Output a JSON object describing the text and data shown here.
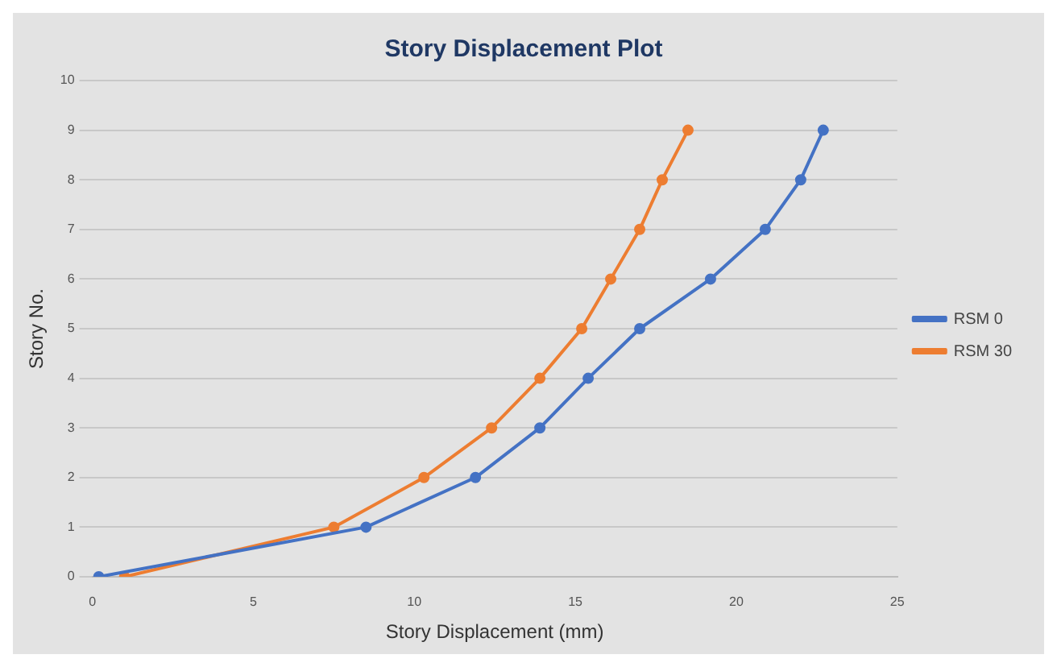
{
  "chart_data": {
    "type": "line",
    "title": "Story Displacement Plot",
    "xlabel": "Story Displacement (mm)",
    "ylabel": "Story No.",
    "series": [
      {
        "name": "RSM 0",
        "color": "#4472c4",
        "x": [
          0.2,
          8.5,
          11.9,
          13.9,
          15.4,
          17.0,
          19.2,
          20.9,
          22.0,
          22.7
        ],
        "values": [
          0,
          1,
          2,
          3,
          4,
          5,
          6,
          7,
          8,
          9
        ]
      },
      {
        "name": "RSM 30",
        "color": "#ed7d31",
        "x": [
          1.0,
          7.5,
          10.3,
          12.4,
          13.9,
          15.2,
          16.1,
          17.0,
          17.7,
          18.5
        ],
        "values": [
          0,
          1,
          2,
          3,
          4,
          5,
          6,
          7,
          8,
          9
        ]
      }
    ],
    "xlim": [
      0,
      25
    ],
    "xticks": [
      0,
      5,
      10,
      15,
      20,
      25
    ],
    "ylim": [
      0,
      10
    ],
    "yticks": [
      0,
      1,
      2,
      3,
      4,
      5,
      6,
      7,
      8,
      9,
      10
    ],
    "grid": "y",
    "legend": "right",
    "marker": "circle",
    "line_style": "solid"
  }
}
